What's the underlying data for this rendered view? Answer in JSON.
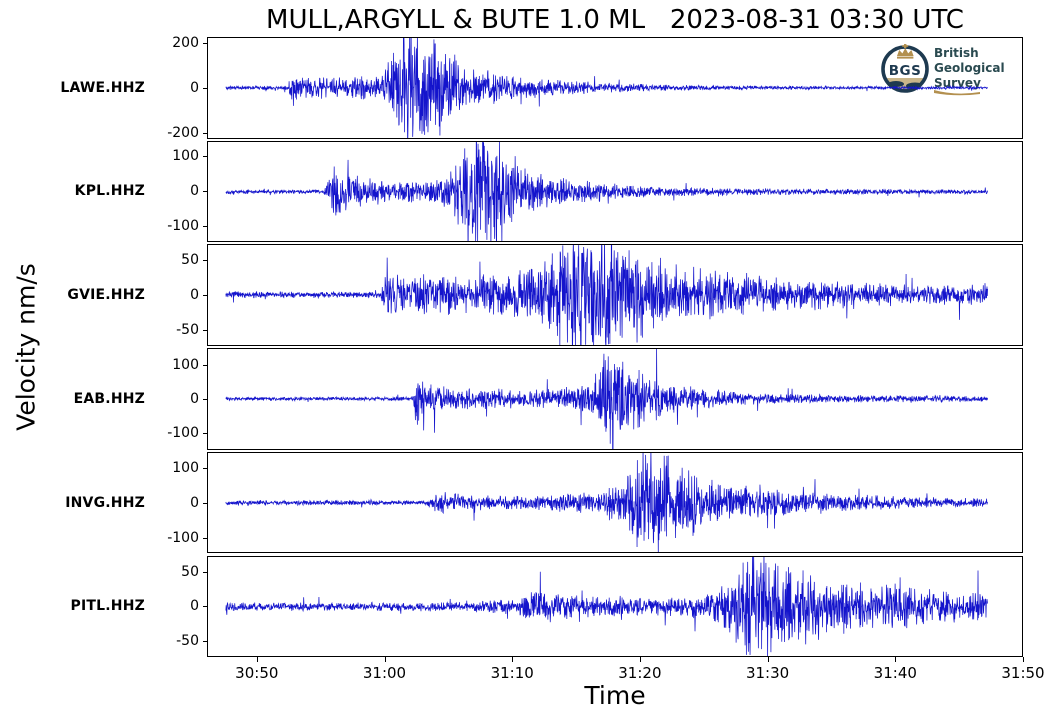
{
  "logo": {
    "bgs": "BGS",
    "line1": "British",
    "line2": "Geological",
    "line3": "Survey",
    "navy": "#1e3a50",
    "gold": "#b3904f",
    "tan": "#c9b68a",
    "text_color": "#2a4a50"
  },
  "chart_data": {
    "type": "line",
    "title": "MULL,ARGYLL & BUTE 1.0 ML   2023-08-31 03:30 UTC",
    "xlabel": "Time",
    "ylabel": "Velocity nm/s",
    "trace_color": "#1414cc",
    "grid": false,
    "legend": "none",
    "x_axis": {
      "tick_labels": [
        "30:50",
        "31:00",
        "31:10",
        "31:20",
        "31:30",
        "31:40",
        "31:50"
      ],
      "tick_seconds": [
        50,
        60,
        70,
        80,
        90,
        100,
        110
      ],
      "left_edge_s": 46.1,
      "right_edge_s": 110.0,
      "data_start_s": 47.5,
      "data_end_s": 107.3,
      "units": "mm:ss after 03:00 UTC"
    },
    "stations": [
      {
        "label": "LAWE.HHZ",
        "yticks": [
          200,
          0,
          -200
        ],
        "ylim": 225,
        "seed": 11,
        "envelope": [
          [
            47.5,
            8
          ],
          [
            52.4,
            8
          ],
          [
            52.7,
            110
          ],
          [
            53.1,
            40
          ],
          [
            59.8,
            45
          ],
          [
            60.6,
            150
          ],
          [
            61.5,
            235
          ],
          [
            63.3,
            215
          ],
          [
            64.8,
            150
          ],
          [
            66.5,
            80
          ],
          [
            69,
            55
          ],
          [
            72,
            38
          ],
          [
            76,
            22
          ],
          [
            81,
            13
          ],
          [
            86,
            9
          ],
          [
            93,
            7
          ],
          [
            100,
            6
          ],
          [
            107.3,
            5
          ]
        ]
      },
      {
        "label": "KPL.HHZ",
        "yticks": [
          100,
          0,
          -100
        ],
        "ylim": 145,
        "seed": 22,
        "envelope": [
          [
            47.5,
            5
          ],
          [
            55.2,
            5
          ],
          [
            55.9,
            62
          ],
          [
            57.2,
            45
          ],
          [
            59,
            30
          ],
          [
            61,
            26
          ],
          [
            64.3,
            30
          ],
          [
            65.8,
            85
          ],
          [
            67.3,
            150
          ],
          [
            69.3,
            125
          ],
          [
            70.8,
            70
          ],
          [
            73,
            40
          ],
          [
            76,
            25
          ],
          [
            79,
            16
          ],
          [
            83,
            11
          ],
          [
            88,
            9
          ],
          [
            95,
            7
          ],
          [
            107.3,
            6
          ]
        ]
      },
      {
        "label": "GVIE.HHZ",
        "yticks": [
          50,
          0,
          -50
        ],
        "ylim": 72,
        "seed": 33,
        "envelope": [
          [
            47.5,
            4
          ],
          [
            59.6,
            4
          ],
          [
            60.1,
            26
          ],
          [
            62,
            22
          ],
          [
            64.5,
            26
          ],
          [
            67,
            23
          ],
          [
            70,
            26
          ],
          [
            72.4,
            42
          ],
          [
            74,
            75
          ],
          [
            76.3,
            82
          ],
          [
            78.5,
            65
          ],
          [
            80.5,
            48
          ],
          [
            83,
            38
          ],
          [
            86,
            30
          ],
          [
            89,
            24
          ],
          [
            93,
            19
          ],
          [
            97,
            15
          ],
          [
            101,
            13
          ],
          [
            107.3,
            12
          ]
        ]
      },
      {
        "label": "EAB.HHZ",
        "yticks": [
          100,
          0,
          -100
        ],
        "ylim": 148,
        "seed": 44,
        "envelope": [
          [
            47.5,
            5
          ],
          [
            62.2,
            5
          ],
          [
            62.5,
            95
          ],
          [
            63,
            38
          ],
          [
            65,
            32
          ],
          [
            67.5,
            26
          ],
          [
            70,
            22
          ],
          [
            73,
            24
          ],
          [
            75.5,
            35
          ],
          [
            76.8,
            70
          ],
          [
            77.6,
            150
          ],
          [
            78.8,
            100
          ],
          [
            80.5,
            65
          ],
          [
            82.5,
            40
          ],
          [
            85,
            26
          ],
          [
            88,
            17
          ],
          [
            92,
            12
          ],
          [
            97,
            9
          ],
          [
            107.3,
            7
          ]
        ]
      },
      {
        "label": "INVG.HHZ",
        "yticks": [
          100,
          0,
          -100
        ],
        "ylim": 145,
        "seed": 55,
        "envelope": [
          [
            47.5,
            6
          ],
          [
            63.3,
            6
          ],
          [
            64,
            30
          ],
          [
            65.5,
            22
          ],
          [
            68,
            17
          ],
          [
            71,
            17
          ],
          [
            74,
            21
          ],
          [
            76.5,
            28
          ],
          [
            78.8,
            55
          ],
          [
            80,
            140
          ],
          [
            82,
            125
          ],
          [
            84,
            80
          ],
          [
            86,
            50
          ],
          [
            88.5,
            38
          ],
          [
            91,
            30
          ],
          [
            94,
            25
          ],
          [
            97,
            21
          ],
          [
            100,
            16
          ],
          [
            103,
            13
          ],
          [
            107.3,
            11
          ]
        ]
      },
      {
        "label": "PITL.HHZ",
        "yticks": [
          50,
          0,
          -50
        ],
        "ylim": 73,
        "seed": 66,
        "envelope": [
          [
            47.5,
            5
          ],
          [
            65.5,
            5.5
          ],
          [
            68,
            7
          ],
          [
            70.5,
            10
          ],
          [
            71.8,
            21
          ],
          [
            73.2,
            17
          ],
          [
            75.5,
            13
          ],
          [
            78,
            14
          ],
          [
            80.5,
            12
          ],
          [
            83,
            13
          ],
          [
            85.5,
            15
          ],
          [
            86.8,
            35
          ],
          [
            88.6,
            78
          ],
          [
            90.5,
            68
          ],
          [
            92.5,
            48
          ],
          [
            94.5,
            36
          ],
          [
            96.5,
            30
          ],
          [
            98.5,
            26
          ],
          [
            100.5,
            28
          ],
          [
            102.5,
            22
          ],
          [
            104.5,
            19
          ],
          [
            107.3,
            17
          ]
        ]
      }
    ]
  }
}
